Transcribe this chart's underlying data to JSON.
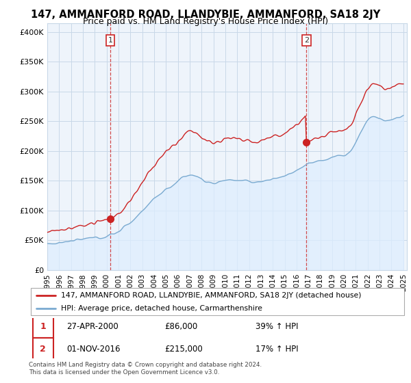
{
  "title": "147, AMMANFORD ROAD, LLANDYBIE, AMMANFORD, SA18 2JY",
  "subtitle": "Price paid vs. HM Land Registry's House Price Index (HPI)",
  "yticks": [
    0,
    50000,
    100000,
    150000,
    200000,
    250000,
    300000,
    350000,
    400000
  ],
  "ytick_labels": [
    "£0",
    "£50K",
    "£100K",
    "£150K",
    "£200K",
    "£250K",
    "£300K",
    "£350K",
    "£400K"
  ],
  "ylim": [
    0,
    415000
  ],
  "xlim_start": 1995.0,
  "xlim_end": 2025.3,
  "sale1_x": 2000.32,
  "sale1_y": 86000,
  "sale2_x": 2016.83,
  "sale2_y": 215000,
  "vline1_x": 2000.32,
  "vline2_x": 2016.83,
  "line_red_color": "#cc2222",
  "line_blue_color": "#7aaad0",
  "fill_blue_color": "#ddeeff",
  "legend_line1_label": "147, AMMANFORD ROAD, LLANDYBIE, AMMANFORD, SA18 2JY (detached house)",
  "legend_line2_label": "HPI: Average price, detached house, Carmarthenshire",
  "annotation1_date": "27-APR-2000",
  "annotation1_price": "£86,000",
  "annotation1_hpi": "39% ↑ HPI",
  "annotation2_date": "01-NOV-2016",
  "annotation2_price": "£215,000",
  "annotation2_hpi": "17% ↑ HPI",
  "footer": "Contains HM Land Registry data © Crown copyright and database right 2024.\nThis data is licensed under the Open Government Licence v3.0.",
  "background_color": "#ffffff",
  "plot_bg_color": "#eef4fb",
  "grid_color": "#c8d8e8"
}
